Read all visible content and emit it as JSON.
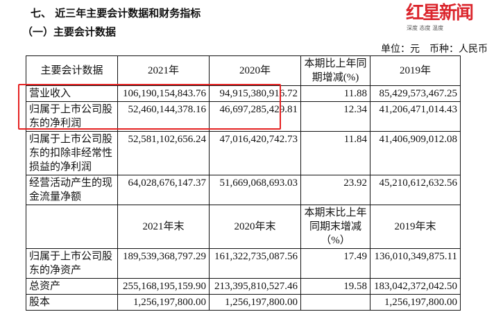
{
  "section_title": "七、 近三年主要会计数据和财务指标",
  "subsection_title": "（一）主要会计数据",
  "unit_note": "单位：元　币种：人民币",
  "table1": {
    "headers": [
      "主要会计数据",
      "2021年",
      "2020年",
      "本期比上年同期增减(%)",
      "2019年"
    ],
    "rows": [
      [
        "营业收入",
        "106,190,154,843.76",
        "94,915,380,916.72",
        "11.88",
        "85,429,573,467.25"
      ],
      [
        "归属于上市公司股东的净利润",
        "52,460,144,378.16",
        "46,697,285,429.81",
        "12.34",
        "41,206,471,014.43"
      ],
      [
        "归属于上市公司股东的扣除非经常性损益的净利润",
        "52,581,102,656.24",
        "47,016,420,742.73",
        "11.84",
        "41,406,909,012.08"
      ],
      [
        "经营活动产生的现金流量净额",
        "64,028,676,147.37",
        "51,669,068,693.03",
        "23.92",
        "45,210,612,632.56"
      ]
    ]
  },
  "table2": {
    "headers": [
      "",
      "2021年末",
      "2020年末",
      "本期末比上年同期末增减（%）",
      "2019年末"
    ],
    "rows": [
      [
        "归属于上市公司股东的净资产",
        "189,539,368,797.29",
        "161,322,735,087.56",
        "17.49",
        "136,010,349,875.11"
      ],
      [
        "总资产",
        "255,168,195,159.90",
        "213,395,810,527.46",
        "19.58",
        "183,042,372,042.50"
      ],
      [
        "股本",
        "1,256,197,800.00",
        "1,256,197,800.00",
        "",
        "1,256,197,800.00"
      ]
    ]
  },
  "highlight_color": "#e52020",
  "watermark": {
    "logo": "红星新闻",
    "tagline": "深度 态度 温度"
  }
}
